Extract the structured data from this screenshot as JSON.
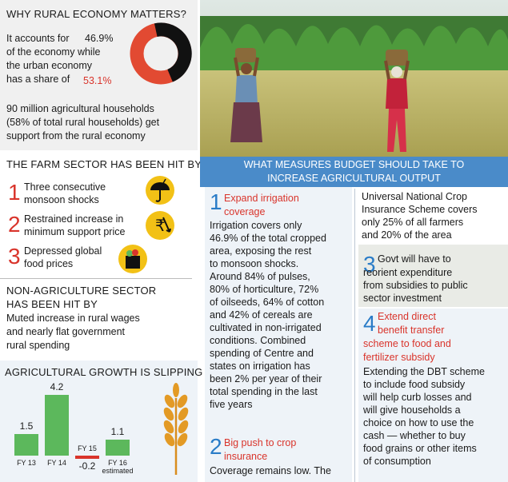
{
  "rural": {
    "heading": "WHY RURAL ECONOMY MATTERS?",
    "line1": "It accounts for",
    "line2": "of the economy while",
    "line3": "the urban economy",
    "line4": "has a share of",
    "rural_share": "46.9%",
    "urban_share": "53.1%",
    "rural_share_value": 46.9,
    "urban_share_value": 53.1,
    "households_line1": "90 million agricultural households",
    "households_line2": "(58%  of total rural households) get",
    "households_line3": "support from the rural economy"
  },
  "farm": {
    "heading": "THE FARM SECTOR HAS BEEN HIT BY",
    "items": [
      {
        "num": "1",
        "line1": "Three consecutive",
        "line2": "monsoon shocks",
        "icon": "umbrella-lightning-icon"
      },
      {
        "num": "2",
        "line1": "Restrained increase in",
        "line2": "minimum support price",
        "icon": "rupee-down-icon"
      },
      {
        "num": "3",
        "line1": "Depressed global",
        "line2": "food prices",
        "icon": "grocery-bag-icon"
      }
    ]
  },
  "nonagri": {
    "heading1": "NON-AGRICULTURE SECTOR",
    "heading2": "HAS BEEN HIT BY",
    "line1": "Muted increase in rural wages",
    "line2": "and nearly flat government",
    "line3": "rural spending"
  },
  "growth": {
    "heading": "AGRICULTURAL GROWTH IS SLIPPING",
    "icon": "wheat-icon"
  },
  "chart_data": {
    "type": "bar",
    "title": "AGRICULTURAL GROWTH IS SLIPPING",
    "categories": [
      "FY 13",
      "FY 14",
      "FY 15",
      "FY 16 estimated"
    ],
    "values": [
      1.5,
      4.2,
      -0.2,
      1.1
    ],
    "value_labels": [
      "1.5",
      "4.2",
      "-0.2",
      "1.1"
    ],
    "colors": {
      "positive": "#5cb85c",
      "negative": "#d9342b"
    }
  },
  "measures": {
    "banner_line1": "WHAT MEASURES BUDGET SHOULD TAKE TO",
    "banner_line2": "INCREASE AGRICULTURAL OUTPUT",
    "m1": {
      "num": "1",
      "title1": "Expand irrigation",
      "title2": "coverage",
      "lines": [
        "Irrigation covers only",
        "46.9% of the total cropped",
        "area, exposing the rest",
        "to monsoon shocks.",
        "Around 84% of pulses,",
        "80% of horticulture, 72%",
        "of oilseeds, 64% of cotton",
        "and 42% of cereals are",
        "cultivated in non-irrigated",
        "conditions. Combined",
        "spending of Centre and",
        "states on irrigation has",
        "been 2% per year of their",
        "total spending in the last",
        "five years"
      ]
    },
    "m2": {
      "num": "2",
      "title1": "Big push to crop",
      "title2": "insurance",
      "line1": "Coverage remains low. The"
    },
    "continued": {
      "lines": [
        "Universal National Crop",
        "Insurance Scheme covers",
        "only 25% of all farmers",
        "and 20% of the area"
      ]
    },
    "m3": {
      "num": "3",
      "title": "Govt will have to",
      "lines": [
        "reorient expenditure",
        "from subsidies to public",
        "sector investment"
      ]
    },
    "m4": {
      "num": "4",
      "title1": "Extend direct",
      "title2": "benefit transfer",
      "title3": "scheme to food and",
      "title4": "fertilizer subsidy",
      "lines": [
        "Extending the DBT scheme",
        "to include food subsidy",
        "will help curb losses and",
        "will give households a",
        "choice on how to use the",
        "cash — whether to buy",
        "food grains or other items",
        "of consumption"
      ]
    }
  },
  "colors": {
    "accent_red": "#d9342b",
    "accent_blue": "#2a7cc7",
    "bar_green": "#5cb85c",
    "banner_blue": "#4a8bc9"
  }
}
